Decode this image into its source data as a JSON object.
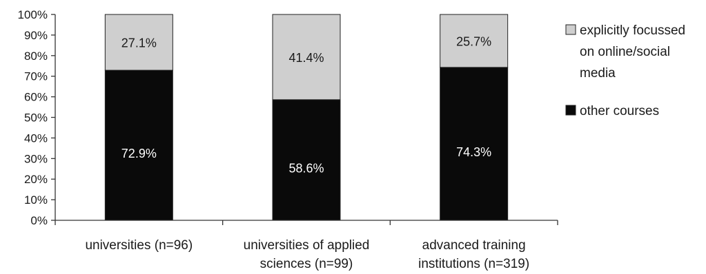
{
  "chart_data": {
    "type": "bar",
    "stacked": true,
    "categories": [
      [
        "universities (n=96)"
      ],
      [
        "universities of applied",
        "sciences (n=99)"
      ],
      [
        "advanced training",
        "institutions (n=319)"
      ]
    ],
    "series": [
      {
        "name": "other courses",
        "color": "#0a0a0a",
        "label_color": "#ffffff",
        "values": [
          72.9,
          58.6,
          74.3
        ],
        "labels": [
          "72.9%",
          "58.6%",
          "74.3%"
        ]
      },
      {
        "name": "explicitly focussed on online/social media",
        "legend_lines": [
          "explicitly focussed",
          "on online/social",
          "media"
        ],
        "color": "#cfcfcf",
        "label_color": "#1a1a1a",
        "values": [
          27.1,
          41.4,
          25.7
        ],
        "labels": [
          "27.1%",
          "41.4%",
          "25.7%"
        ]
      }
    ],
    "ylim": [
      0,
      100
    ],
    "yticks": [
      "0%",
      "10%",
      "20%",
      "30%",
      "40%",
      "50%",
      "60%",
      "70%",
      "80%",
      "90%",
      "100%"
    ],
    "title": "",
    "xlabel": "",
    "ylabel": "",
    "grid": false,
    "legend": "right"
  }
}
